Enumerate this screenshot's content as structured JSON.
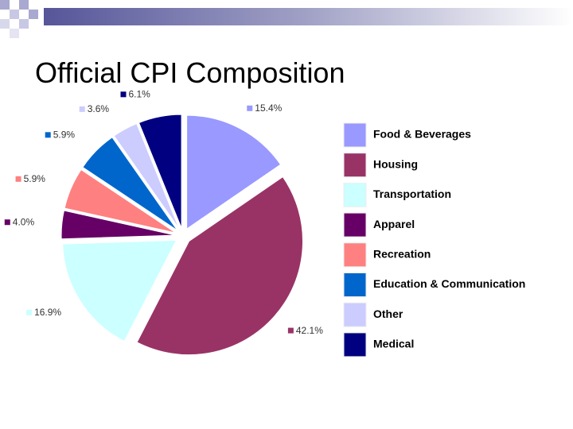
{
  "chart_data": {
    "type": "pie",
    "title": "Official CPI Composition",
    "categories": [
      "Food & Beverages",
      "Housing",
      "Transportation",
      "Apparel",
      "Recreation",
      "Education & Communication",
      "Other",
      "Medical"
    ],
    "values": [
      15.4,
      42.1,
      16.9,
      4.0,
      5.9,
      5.9,
      3.6,
      6.1
    ],
    "value_labels": [
      "15.4%",
      "42.1%",
      "16.9%",
      "4.0%",
      "5.9%",
      "5.9%",
      "3.6%",
      "6.1%"
    ],
    "colors": [
      "#9999ff",
      "#993366",
      "#ccffff",
      "#660066",
      "#ff8080",
      "#0066cc",
      "#ccccff",
      "#000080"
    ],
    "legend": "right"
  }
}
